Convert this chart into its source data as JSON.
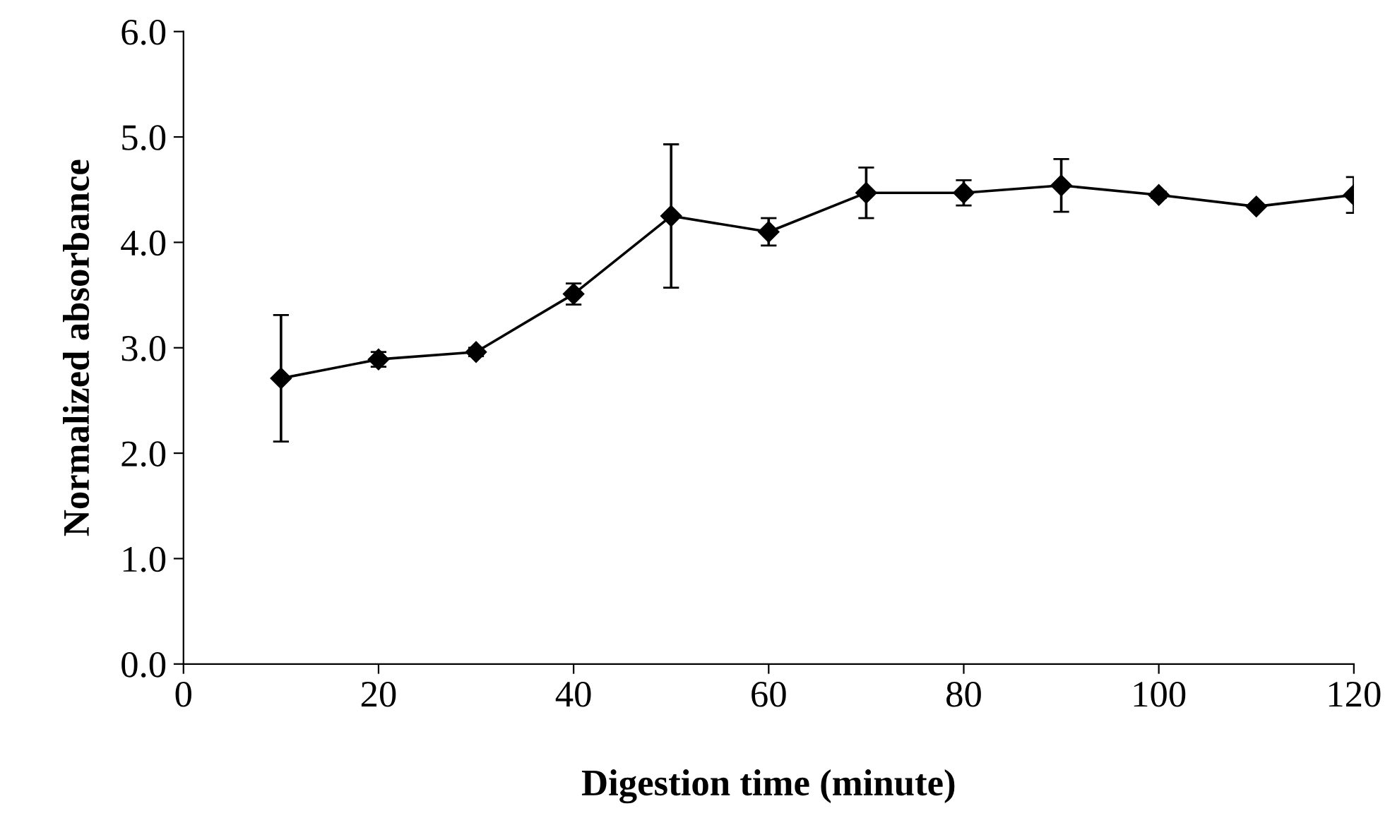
{
  "chart_data": {
    "type": "line",
    "xlabel": "Digestion time (minute)",
    "ylabel": "Normalized absorbance",
    "xlim": [
      0,
      120
    ],
    "xticks": [
      0,
      20,
      40,
      60,
      80,
      100,
      120
    ],
    "ylim": [
      0,
      6
    ],
    "yticks": [
      {
        "value": 0,
        "label": "0.0"
      },
      {
        "value": 1,
        "label": "1.0"
      },
      {
        "value": 2,
        "label": "2.0"
      },
      {
        "value": 3,
        "label": "3.0"
      },
      {
        "value": 4,
        "label": "4.0"
      },
      {
        "value": 5,
        "label": "5.0"
      },
      {
        "value": 6,
        "label": "6.0"
      }
    ],
    "x": [
      10,
      20,
      30,
      40,
      50,
      60,
      70,
      80,
      90,
      100,
      110,
      120
    ],
    "series": [
      {
        "color": "#000000",
        "values": [
          2.71,
          2.89,
          2.96,
          3.51,
          4.25,
          4.1,
          4.47,
          4.47,
          4.54,
          4.45,
          4.34,
          4.45
        ],
        "errors": [
          0.6,
          0.07,
          0.04,
          0.1,
          0.68,
          0.13,
          0.24,
          0.12,
          0.25,
          0.03,
          0.02,
          0.17
        ]
      }
    ],
    "marker": "diamond",
    "line_style": "solid",
    "grid": false,
    "legend": false
  }
}
